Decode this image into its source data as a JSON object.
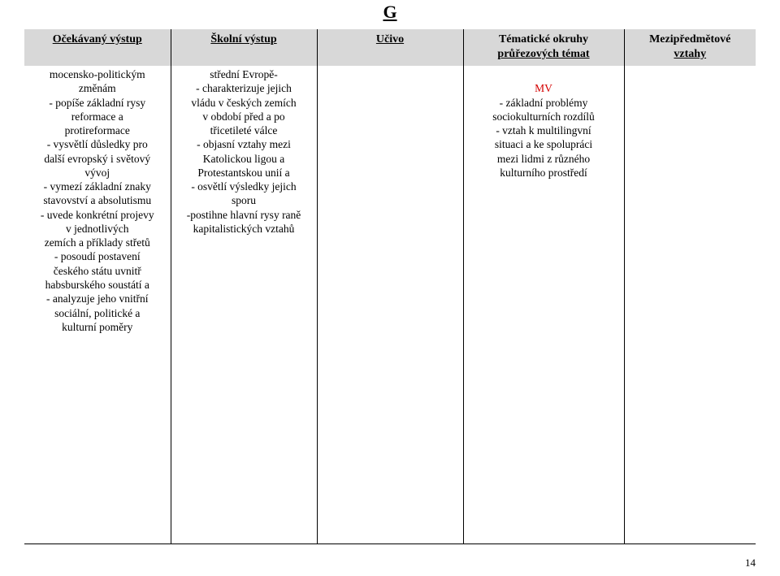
{
  "logo": "G",
  "page_number": "14",
  "headers": {
    "col1": "Očekávaný výstup",
    "col2": "Školní výstup",
    "col3": "Učivo",
    "col4_l1": "Tématické okruhy",
    "col4_l2": "průřezových témat",
    "col5_l1": "Mezipředmětové",
    "col5_l2": "vztahy"
  },
  "col1": {
    "l1": "mocensko-politickým",
    "l2": "změnám",
    "l3": "- popíše základní rysy",
    "l4": "reformace a",
    "l5": "protireformace",
    "l6": "- vysvětlí důsledky pro",
    "l7": "další evropský i světový",
    "l8": "vývoj",
    "l9": "- vymezí základní znaky",
    "l10": "stavovství a absolutismu",
    "l11": "- uvede konkrétní projevy",
    "l12": "v jednotlivých",
    "l13": "zemích a příklady střetů",
    "l14": "- posoudí postavení",
    "l15": "českého státu uvnitř",
    "l16": "habsburského soustátí a",
    "l17": "- analyzuje jeho vnitřní",
    "l18": "sociální, politické a",
    "l19": "kulturní poměry"
  },
  "col2": {
    "l1": "střední Evropě-",
    "l2": "- charakterizuje jejich",
    "l3": "vládu v českých zemích",
    "l4": "v období před a po",
    "l5": "třicetileté válce",
    "l6": "- objasní vztahy mezi",
    "l7": "Katolickou ligou a",
    "l8": "Protestantskou unií a",
    "l9": "- osvětlí výsledky jejich",
    "l10": "sporu",
    "l11": "-postihne hlavní rysy raně",
    "l12": "kapitalistických vztahů"
  },
  "col4": {
    "mv": "MV",
    "l1": "- základní problémy",
    "l2": "sociokulturních rozdílů",
    "l3": "- vztah k multilingvní",
    "l4": "situaci a ke spolupráci",
    "l5": "mezi lidmi z různého",
    "l6": "kulturního prostředí"
  }
}
